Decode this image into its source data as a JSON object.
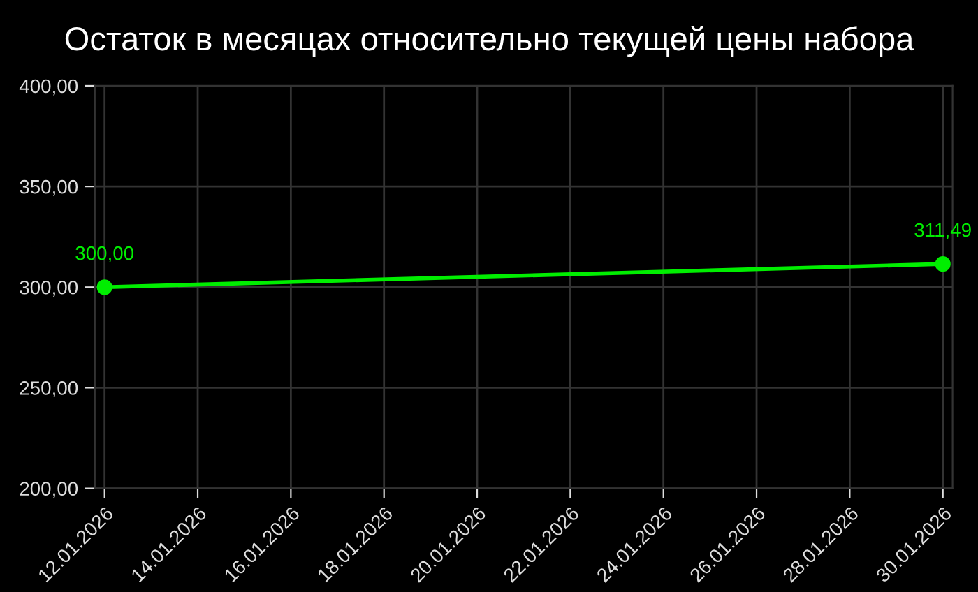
{
  "chart_data": {
    "type": "line",
    "title": "Остаток в месяцах относительно текущей цены набора",
    "x": [
      "2026-01-12",
      "2026-01-30"
    ],
    "series": [
      {
        "color": "#00ee00",
        "values": [
          300.0,
          311.49
        ],
        "value_labels": [
          "300,00",
          "311,49"
        ]
      }
    ],
    "xlim": [
      "2026-01-11T19:00",
      "2026-01-30T05:00"
    ],
    "xticks": [
      {
        "value": "2026-01-12",
        "label": "12.01.2026"
      },
      {
        "value": "2026-01-14",
        "label": "14.01.2026"
      },
      {
        "value": "2026-01-16",
        "label": "16.01.2026"
      },
      {
        "value": "2026-01-18",
        "label": "18.01.2026"
      },
      {
        "value": "2026-01-20",
        "label": "20.01.2026"
      },
      {
        "value": "2026-01-22",
        "label": "22.01.2026"
      },
      {
        "value": "2026-01-24",
        "label": "24.01.2026"
      },
      {
        "value": "2026-01-26",
        "label": "26.01.2026"
      },
      {
        "value": "2026-01-28",
        "label": "28.01.2026"
      },
      {
        "value": "2026-01-30",
        "label": "30.01.2026"
      }
    ],
    "ylim": [
      200,
      400
    ],
    "yticks": [
      {
        "value": 200,
        "label": "200,00"
      },
      {
        "value": 250,
        "label": "250,00"
      },
      {
        "value": 300,
        "label": "300,00"
      },
      {
        "value": 350,
        "label": "350,00"
      },
      {
        "value": 400,
        "label": "400,00"
      }
    ],
    "grid": true,
    "marker": "circle",
    "line_style": "solid",
    "legend": false
  }
}
